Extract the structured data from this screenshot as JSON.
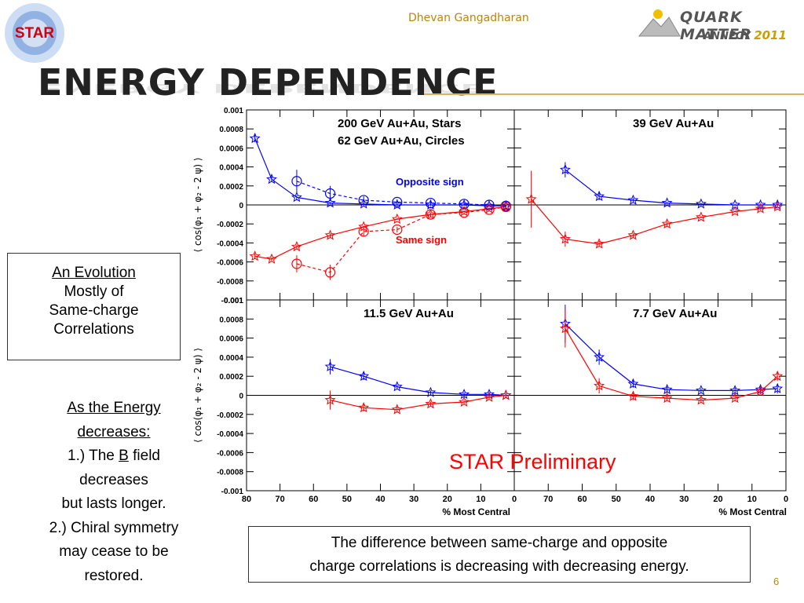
{
  "header": {
    "logo_text": "STAR",
    "author": "Dhevan Gangadharan",
    "conference_title": "QUARK MATTER",
    "conference_place": "ANNECY",
    "conference_year": "2011"
  },
  "slide": {
    "title": "ENERGY DEPENDENCE",
    "page_number": "6"
  },
  "evolution_box": {
    "heading": "An Evolution",
    "line1": "Mostly of",
    "line2": "Same-charge",
    "line3": "Correlations"
  },
  "energy_text": {
    "heading1": "As the Energy",
    "heading2": "decreases:",
    "item1_prefix": "1.) The ",
    "item1_b": "B",
    "item1_suffix": " field",
    "item1_line2": "decreases",
    "item1_line3": "but lasts longer.",
    "item2_line1": "2.) Chiral symmetry",
    "item2_line2": "may cease to be",
    "item2_line3": "restored."
  },
  "conclusion_box": {
    "line1": "The difference between same-charge and opposite",
    "line2": "charge correlations is decreasing with decreasing energy."
  },
  "preliminary_label": "STAR Preliminary",
  "colors": {
    "opposite": "#0000ff",
    "same": "#ff0000",
    "author": "#b8860b",
    "accent_rule": "#e0b060"
  },
  "chart_data": {
    "type": "scatter",
    "layout": "2x2 panels",
    "ylabel": "⟨ cos(φ₁ + φ₂ - 2 ψ) ⟩",
    "xlabel": "% Most Central",
    "xlim": [
      80,
      0
    ],
    "ylim": [
      -0.001,
      0.001
    ],
    "xticks_left": [
      "80",
      "70",
      "60",
      "50",
      "40",
      "30",
      "20",
      "10",
      "0"
    ],
    "xticks_right": [
      "70",
      "60",
      "50",
      "40",
      "30",
      "20",
      "10",
      "0"
    ],
    "yticks": [
      "0.001",
      "0.0008",
      "0.0006",
      "0.0004",
      "0.0002",
      "0",
      "-0.0002",
      "-0.0004",
      "-0.0006",
      "-0.0008",
      "-0.001"
    ],
    "panels": [
      {
        "title_line1": "200 GeV Au+Au, Stars",
        "title_line2": "62 GeV Au+Au, Circles",
        "label_opposite": "Opposite sign",
        "label_same": "Same sign",
        "series": [
          {
            "legend": "opposite",
            "marker": "star",
            "line": "solid",
            "x": [
              77.5,
              72.5,
              65,
              55,
              45,
              35,
              25,
              15,
              7.5,
              2.5
            ],
            "y": [
              0.0007,
              0.00027,
              8e-05,
              2e-05,
              1e-05,
              0.0,
              0.0,
              0.0,
              -1e-05,
              -1e-05
            ],
            "err": [
              4e-05,
              3e-05,
              2e-05,
              1e-05,
              1e-05,
              1e-05,
              1e-05,
              1e-05,
              1e-05,
              1e-05
            ]
          },
          {
            "legend": "same",
            "marker": "star",
            "line": "solid",
            "x": [
              77.5,
              72.5,
              65,
              55,
              45,
              35,
              25,
              15,
              7.5,
              2.5
            ],
            "y": [
              -0.00054,
              -0.00057,
              -0.00044,
              -0.00032,
              -0.00023,
              -0.00015,
              -0.0001,
              -7e-05,
              -4e-05,
              -2e-05
            ],
            "err": [
              3e-05,
              2e-05,
              2e-05,
              2e-05,
              1e-05,
              1e-05,
              1e-05,
              1e-05,
              1e-05,
              1e-05
            ]
          },
          {
            "legend": "opposite",
            "marker": "circle",
            "line": "dashed",
            "x": [
              65,
              55,
              45,
              35,
              25,
              15,
              7.5,
              2.5
            ],
            "y": [
              0.00025,
              0.00012,
              5e-05,
              3e-05,
              2e-05,
              1e-05,
              0.0,
              -1e-05
            ],
            "err": [
              0.00012,
              8e-05,
              4e-05,
              3e-05,
              2e-05,
              2e-05,
              1e-05,
              1e-05
            ]
          },
          {
            "legend": "same",
            "marker": "circle",
            "line": "dashed",
            "x": [
              65,
              55,
              45,
              35,
              25,
              15,
              7.5,
              2.5
            ],
            "y": [
              -0.00062,
              -0.00071,
              -0.00028,
              -0.00026,
              -0.0001,
              -8e-05,
              -5e-05,
              -2e-05
            ],
            "err": [
              9e-05,
              8e-05,
              5e-05,
              3e-05,
              2e-05,
              2e-05,
              1e-05,
              1e-05
            ]
          }
        ]
      },
      {
        "title_line1": "39 GeV Au+Au",
        "title_line2": "",
        "series": [
          {
            "legend": "opposite",
            "marker": "star",
            "line": "solid",
            "x": [
              65,
              55,
              45,
              35,
              25,
              15,
              7.5,
              2.5
            ],
            "y": [
              0.00037,
              9e-05,
              5e-05,
              2e-05,
              1e-05,
              0.0,
              0.0,
              0.0
            ],
            "err": [
              8e-05,
              4e-05,
              2e-05,
              1e-05,
              1e-05,
              1e-05,
              1e-05,
              1e-05
            ]
          },
          {
            "legend": "same",
            "marker": "star",
            "line": "solid",
            "x": [
              75,
              65,
              55,
              45,
              35,
              25,
              15,
              7.5,
              2.5
            ],
            "y": [
              6e-05,
              -0.00036,
              -0.00041,
              -0.00032,
              -0.0002,
              -0.00013,
              -7e-05,
              -4e-05,
              -2e-05
            ],
            "err": [
              0.0003,
              8e-05,
              3e-05,
              2e-05,
              2e-05,
              1e-05,
              1e-05,
              1e-05,
              1e-05
            ]
          }
        ]
      },
      {
        "title_line1": "11.5 GeV Au+Au",
        "title_line2": "",
        "series": [
          {
            "legend": "opposite",
            "marker": "star",
            "line": "solid",
            "x": [
              55,
              45,
              35,
              25,
              15,
              7.5,
              2.5
            ],
            "y": [
              0.0003,
              0.0002,
              9e-05,
              3e-05,
              1e-05,
              1e-05,
              0.0
            ],
            "err": [
              8e-05,
              4e-05,
              2e-05,
              2e-05,
              2e-05,
              2e-05,
              2e-05
            ]
          },
          {
            "legend": "same",
            "marker": "star",
            "line": "solid",
            "x": [
              55,
              45,
              35,
              25,
              15,
              7.5,
              2.5
            ],
            "y": [
              -5e-05,
              -0.00013,
              -0.00015,
              -9e-05,
              -7e-05,
              -2e-05,
              0.0
            ],
            "err": [
              0.0001,
              4e-05,
              3e-05,
              2e-05,
              2e-05,
              2e-05,
              2e-05
            ]
          }
        ]
      },
      {
        "title_line1": "7.7 GeV Au+Au",
        "title_line2": "",
        "series": [
          {
            "legend": "opposite",
            "marker": "star",
            "line": "solid",
            "x": [
              65,
              55,
              45,
              35,
              25,
              15,
              7.5,
              2.5
            ],
            "y": [
              0.00075,
              0.0004,
              0.00012,
              6e-05,
              5e-05,
              5e-05,
              6e-05,
              7e-05
            ],
            "err": [
              0.0002,
              8e-05,
              4e-05,
              3e-05,
              2e-05,
              3e-05,
              3e-05,
              5e-05
            ]
          },
          {
            "legend": "same",
            "marker": "star",
            "line": "solid",
            "x": [
              65,
              55,
              45,
              35,
              25,
              15,
              7.5,
              2.5
            ],
            "y": [
              0.0007,
              0.0001,
              -1e-05,
              -3e-05,
              -5e-05,
              -3e-05,
              4e-05,
              0.0002
            ],
            "err": [
              0.0002,
              8e-05,
              4e-05,
              3e-05,
              3e-05,
              3e-05,
              3e-05,
              5e-05
            ]
          }
        ]
      }
    ]
  }
}
